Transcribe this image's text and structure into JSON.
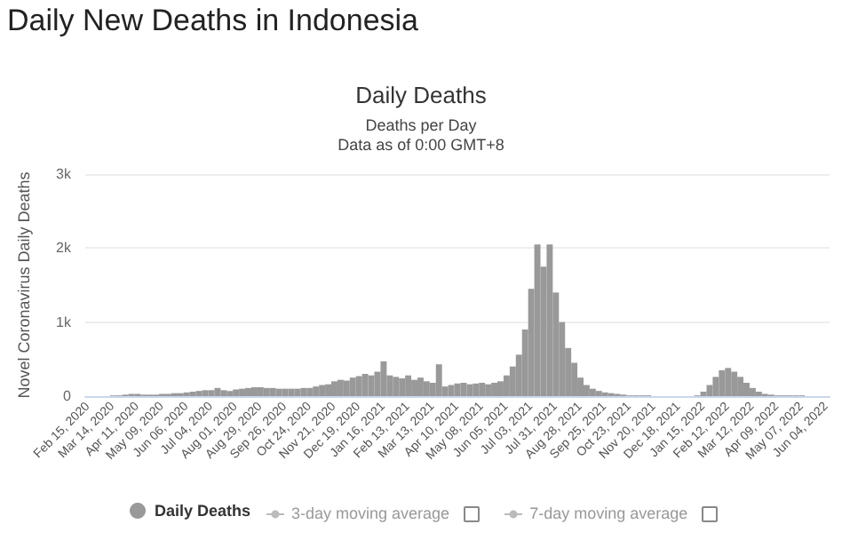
{
  "chart_data": {
    "type": "bar",
    "title": "Daily New Deaths in Indonesia",
    "subtitle": "Daily Deaths",
    "annotations": [
      "Deaths per Day",
      "Data as of 0:00 GMT+8",
      "3-day moving average",
      "7-day moving average"
    ],
    "ylabel": "Novel Coronavirus Daily Deaths",
    "categories": [
      "Feb 15, 2020",
      null,
      null,
      null,
      "Mar 14, 2020",
      null,
      null,
      null,
      "Apr 11, 2020",
      null,
      null,
      null,
      "May 09, 2020",
      null,
      null,
      null,
      "Jun 06, 2020",
      null,
      null,
      null,
      "Jul 04, 2020",
      null,
      null,
      null,
      "Aug 01, 2020",
      null,
      null,
      null,
      "Aug 29, 2020",
      null,
      null,
      null,
      "Sep 26, 2020",
      null,
      null,
      null,
      "Oct 24, 2020",
      null,
      null,
      null,
      "Nov 21, 2020",
      null,
      null,
      null,
      "Dec 19, 2020",
      null,
      null,
      null,
      "Jan 16, 2021",
      null,
      null,
      null,
      "Feb 13, 2021",
      null,
      null,
      null,
      "Mar 13, 2021",
      null,
      null,
      null,
      "Apr 10, 2021",
      null,
      null,
      null,
      "May 08, 2021",
      null,
      null,
      null,
      "Jun 05, 2021",
      null,
      null,
      null,
      "Jul 03, 2021",
      null,
      null,
      null,
      "Jul 31, 2021",
      null,
      null,
      null,
      "Aug 28, 2021",
      null,
      null,
      null,
      "Sep 25, 2021",
      null,
      null,
      null,
      "Oct 23, 2021",
      null,
      null,
      null,
      "Nov 20, 2021",
      null,
      null,
      null,
      "Dec 18, 2021",
      null,
      null,
      null,
      "Jan 15, 2022",
      null,
      null,
      null,
      "Feb 12, 2022",
      null,
      null,
      null,
      "Mar 12, 2022",
      null,
      null,
      null,
      "Apr 09, 2022",
      null,
      null,
      null,
      "May 07, 2022",
      null,
      null,
      null,
      "Jun 04, 2022"
    ],
    "series": [
      {
        "name": "Daily Deaths",
        "color": "#999999",
        "values": [
          0,
          0,
          0,
          0,
          10,
          10,
          20,
          30,
          30,
          20,
          20,
          20,
          30,
          30,
          40,
          40,
          50,
          60,
          70,
          80,
          80,
          110,
          80,
          70,
          90,
          100,
          110,
          120,
          120,
          110,
          110,
          100,
          100,
          100,
          100,
          110,
          110,
          130,
          150,
          160,
          200,
          220,
          210,
          250,
          270,
          300,
          280,
          330,
          470,
          280,
          260,
          240,
          280,
          220,
          250,
          200,
          180,
          430,
          130,
          150,
          170,
          180,
          160,
          170,
          180,
          160,
          180,
          200,
          280,
          400,
          560,
          900,
          1450,
          2050,
          1750,
          2050,
          1400,
          1000,
          650,
          450,
          250,
          150,
          100,
          70,
          50,
          40,
          30,
          20,
          10,
          10,
          10,
          10,
          0,
          0,
          0,
          0,
          0,
          0,
          0,
          10,
          60,
          150,
          260,
          350,
          380,
          330,
          260,
          180,
          110,
          60,
          30,
          20,
          10,
          10,
          10,
          10,
          10,
          0,
          0,
          0,
          0
        ]
      }
    ],
    "ylim": [
      0,
      3000
    ],
    "yticks": [
      {
        "value": 0,
        "label": "0"
      },
      {
        "value": 1000,
        "label": "1k"
      },
      {
        "value": 2000,
        "label": "2k"
      },
      {
        "value": 3000,
        "label": "3k"
      }
    ],
    "grid": "y",
    "legend": "bottom"
  }
}
